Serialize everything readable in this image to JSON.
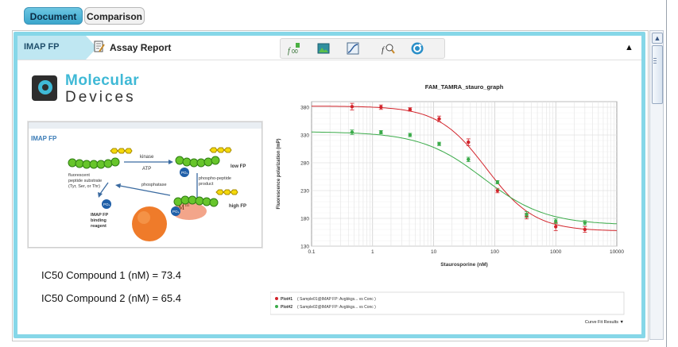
{
  "tabs": [
    {
      "label": "Document",
      "active": true
    },
    {
      "label": "Comparison",
      "active": false
    }
  ],
  "header": {
    "section_label": "IMAP FP",
    "report_title": "Assay Report",
    "toolbar_icons": [
      "formula-chart-icon",
      "image-icon",
      "curve-fit-icon",
      "formula-zoom-icon",
      "refresh-icon"
    ]
  },
  "logo": {
    "line1": "Molecular",
    "line2": "Devices"
  },
  "diagram": {
    "title": "IMAP FP",
    "labels": {
      "kinase": "kinase",
      "atp": "ATP",
      "low_fp": "low FP",
      "substrate": "fluorescent peptide substrate (Tyr, Ser, or Thr)",
      "phosphatase": "phosphatase",
      "phospho_product": "phospho-peptide product",
      "high_fp": "high FP",
      "imap_binding": "IMAP FP binding reagent",
      "po4": "PO4",
      "m_iii": "MIII"
    },
    "colors": {
      "bead": "#67c52b",
      "bead_dark": "#2f7d14",
      "hex": "#f5d90a",
      "phosphate": "#1f5fa8",
      "ball": "#f07a2a",
      "pink": "#f3a58a"
    }
  },
  "results": [
    {
      "label": "IC50 Compound 1 (nM) =",
      "value": "73.4"
    },
    {
      "label": "IC50 Compound 2 (nM) =",
      "value": "65.4"
    }
  ],
  "chart_data": {
    "type": "scatter",
    "title": "FAM_TAMRA_stauro_graph",
    "xlabel": "Staurosporine (nM)",
    "ylabel": "Fluorescence polarization (mP)",
    "x_scale": "log",
    "xlim": [
      0.1,
      10000
    ],
    "ylim": [
      130,
      390
    ],
    "x_ticks": [
      "0.1",
      "1",
      "10",
      "100",
      "1000",
      "10000"
    ],
    "y_ticks": [
      "130",
      "180",
      "230",
      "280",
      "330",
      "380"
    ],
    "grid": true,
    "series": [
      {
        "name": "Plot#1",
        "color": "#d2232a",
        "x": [
          0.46,
          1.37,
          4.1,
          12.3,
          37,
          111,
          333,
          1000,
          3000
        ],
        "y": [
          381,
          380,
          376,
          359,
          317,
          230,
          184,
          165,
          160
        ],
        "err": [
          6,
          4,
          3,
          5,
          6,
          4,
          5,
          7,
          5
        ],
        "fit": {
          "top": 382,
          "bottom": 157,
          "ic50": 73.4,
          "hill": 1.1
        }
      },
      {
        "name": "Plot#2",
        "color": "#3bab4a",
        "x": [
          0.46,
          1.37,
          4.1,
          12.3,
          37,
          111,
          333,
          1000,
          3000
        ],
        "y": [
          335,
          335,
          330,
          314,
          286,
          245,
          187,
          175,
          172
        ],
        "err": [
          4,
          3,
          3,
          3,
          4,
          3,
          5,
          4,
          4
        ],
        "fit": {
          "top": 336,
          "bottom": 168,
          "ic50": 65.4,
          "hill": 0.85
        }
      }
    ],
    "legend_position": "bottom",
    "legend_entries": [
      {
        "name": "Plot#1",
        "text": "( Sample01@IMAP FP: Avgbkgs... vs Conc )"
      },
      {
        "name": "Plot#2",
        "text": "( Sample02@IMAP FP: Avgbkgs... vs Conc )"
      }
    ],
    "footer_link": "Curve Fit Results ▼"
  }
}
